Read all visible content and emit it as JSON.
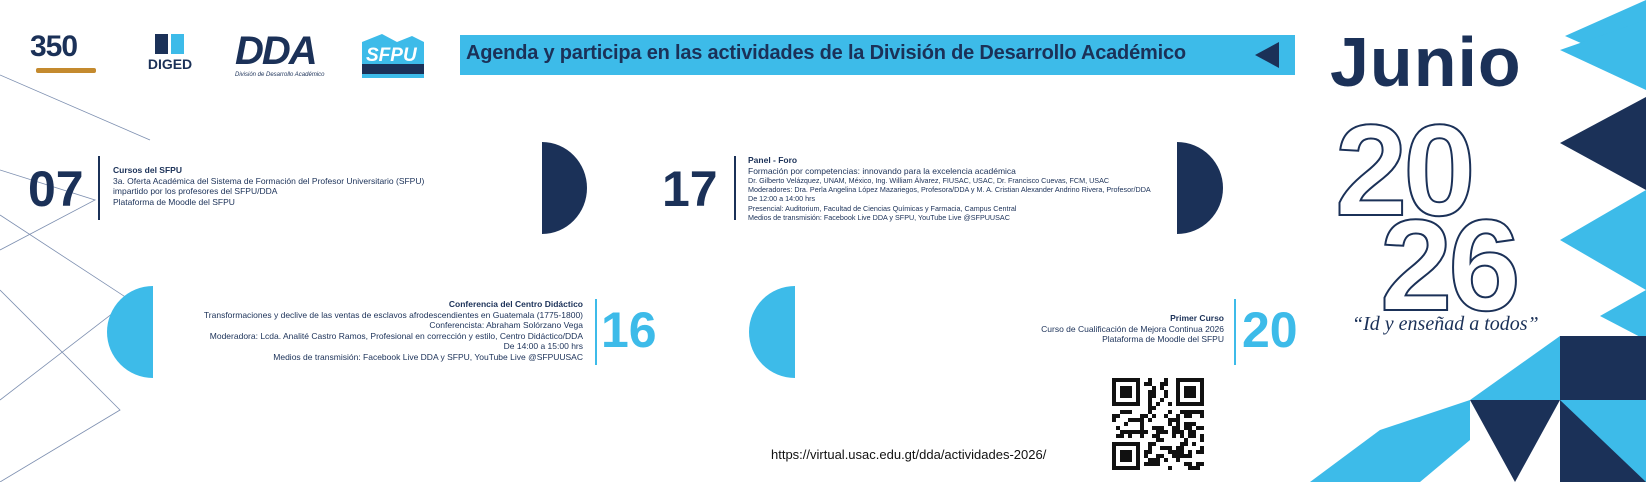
{
  "header": {
    "logo_350": "350",
    "logo_diged": "DIGED",
    "logo_dda": "DDA",
    "logo_dda_sub": "División de Desarrollo Académico",
    "logo_sfpu": "SFPU",
    "banner_text": "Agenda y participa en las actividades de la División de Desarrollo Académico"
  },
  "calendar": {
    "month": "Junio",
    "year_top": "20",
    "year_bottom": "26",
    "motto": "“Id y enseñad a todos”"
  },
  "colors": {
    "navy": "#1b3158",
    "cyan": "#3dbbe9",
    "white": "#ffffff"
  },
  "events": [
    {
      "day": "07",
      "title": "Cursos del SFPU",
      "lines": [
        "3a. Oferta Académica del Sistema de Formación del Profesor Universitario (SFPU)",
        "impartido por los profesores del SFPU/DDA",
        "Plataforma de Moodle del SFPU"
      ]
    },
    {
      "day": "17",
      "title": "Panel - Foro",
      "lines": [
        "Formación por competencias: innovando para la excelencia académica",
        "Dr. Gilberto Velázquez, UNAM, México, Ing. William Álvarez, FIUSAC, USAC, Dr. Francisco Cuevas, FCM, USAC",
        "Moderadores: Dra. Perla Angelina López Mazariegos, Profesora/DDA y M. A. Cristian Alexander Andrino Rivera, Profesor/DDA",
        "De 12:00 a 14:00 hrs",
        "Presencial: Auditorium, Facultad de Ciencias Químicas y Farmacia, Campus Central",
        "Medios de transmisión: Facebook Live DDA y SFPU, YouTube Live @SFPUUSAC"
      ]
    },
    {
      "day": "16",
      "title": "Conferencia del Centro Didáctico",
      "lines": [
        "Transformaciones y declive de las ventas de esclavos afrodescendientes en Guatemala (1775-1800)",
        "Conferencista: Abraham Solórzano Vega",
        "Moderadora: Lcda. Analité Castro Ramos, Profesional en corrección y estilo, Centro Didáctico/DDA",
        "De 14:00  a 15:00 hrs",
        "Medios de transmisión: Facebook Live DDA y SFPU, YouTube Live @SFPUUSAC"
      ]
    },
    {
      "day": "20",
      "title": "Primer Curso",
      "lines": [
        "Curso de Cualificación de Mejora Continua 2026",
        "Plataforma de Moodle del SFPU"
      ]
    }
  ],
  "footer": {
    "url": "https://virtual.usac.edu.gt/dda/actividades-2026/",
    "qr_icon": "qr-code-icon"
  }
}
